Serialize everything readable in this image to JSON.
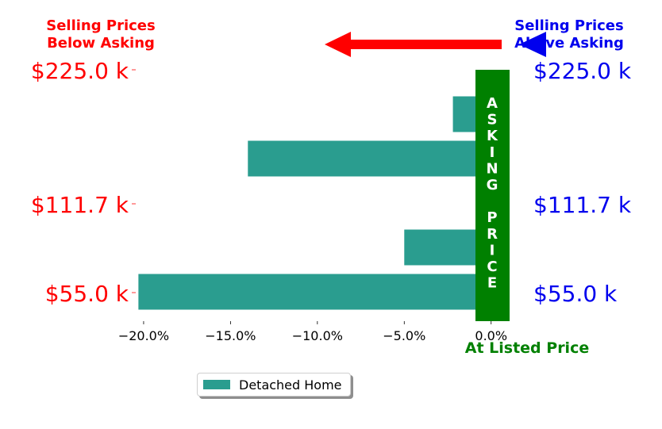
{
  "chart_data": {
    "type": "bar",
    "orientation": "horizontal",
    "series": [
      {
        "name": "Detached Home",
        "color": "#2a9d8f",
        "values": [
          -20.3,
          -5.0,
          1.0,
          -14.0,
          -2.2
        ]
      }
    ],
    "x_ticks": [
      "−20.0%",
      "−15.0%",
      "−10.0%",
      "−5.0%",
      "0.0%"
    ],
    "x_tick_values": [
      -20,
      -15,
      -10,
      -5,
      0
    ],
    "xlim": [
      -20.5,
      1.2
    ],
    "left_price_labels": [
      "$55.0 k",
      "$111.7 k",
      "$225.0 k"
    ],
    "right_price_labels": [
      "$55.0 k",
      "$111.7 k",
      "$225.0 k"
    ],
    "header_left": [
      "Selling Prices",
      "Below Asking"
    ],
    "header_right": [
      "Selling Prices",
      "Above Asking"
    ],
    "asking_price_letters": [
      "A",
      "S",
      "K",
      "I",
      "N",
      "G",
      "",
      "P",
      "R",
      "I",
      "C",
      "E"
    ],
    "at_listed_price_label": "At Listed Price",
    "legend": {
      "label": "Detached Home",
      "placement": "bottom-center"
    },
    "colors": {
      "below": "#ff0000",
      "above": "#0000ee",
      "asking": "#008000",
      "bar": "#2a9d8f"
    }
  }
}
